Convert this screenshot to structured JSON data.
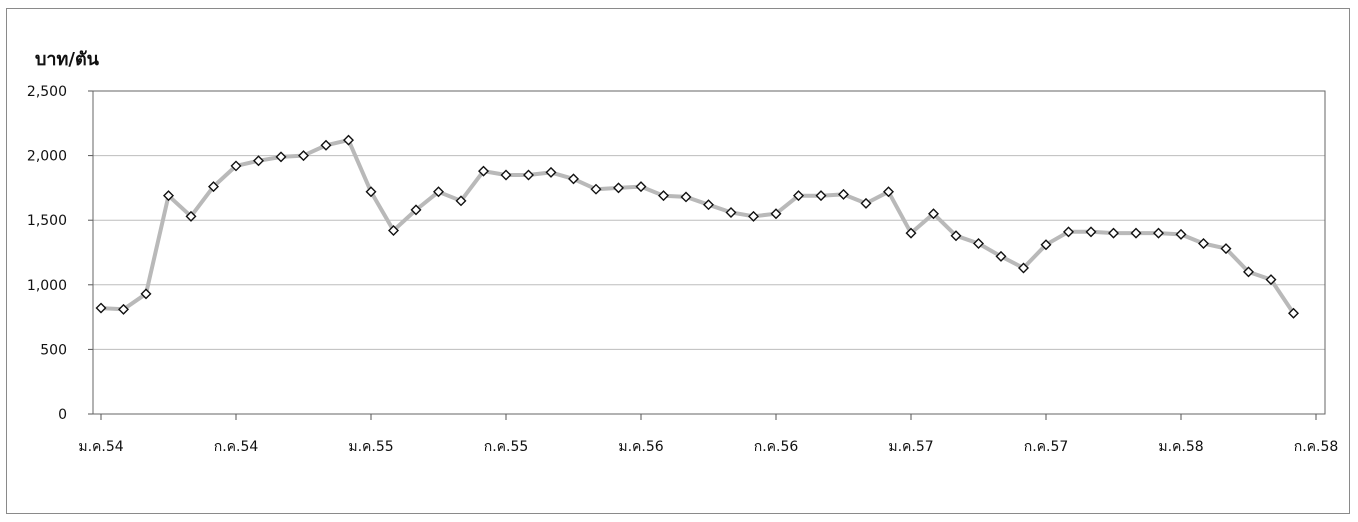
{
  "chart_data": {
    "type": "line",
    "title": "",
    "xlabel": "",
    "ylabel": "บาท/ตัน",
    "ylim": [
      0,
      2500
    ],
    "y_ticks": [
      "0",
      "500",
      "1,000",
      "1,500",
      "2,000",
      "2,500"
    ],
    "y_tick_values": [
      0,
      500,
      1000,
      1500,
      2000,
      2500
    ],
    "x_tick_labels": [
      "ม.ค.54",
      "ก.ค.54",
      "ม.ค.55",
      "ก.ค.55",
      "ม.ค.56",
      "ก.ค.56",
      "ม.ค.57",
      "ก.ค.57",
      "ม.ค.58",
      "ก.ค.58"
    ],
    "x_tick_months": [
      0,
      6,
      12,
      18,
      24,
      30,
      36,
      42,
      48,
      54
    ],
    "grid": true,
    "legend": "none",
    "series": [
      {
        "line_color": "#b9b9b9",
        "marker": "diamond",
        "months": [
          0,
          1,
          2,
          3,
          4,
          5,
          6,
          7,
          8,
          9,
          10,
          11,
          12,
          13,
          14,
          15,
          16,
          17,
          18,
          19,
          20,
          21,
          22,
          23,
          24,
          25,
          26,
          27,
          28,
          29,
          30,
          31,
          32,
          33,
          34,
          35,
          36,
          37,
          38,
          39,
          40,
          41,
          42,
          43,
          44,
          45,
          46,
          47,
          48,
          49,
          50,
          51,
          52,
          53
        ],
        "values": [
          820,
          810,
          930,
          1690,
          1530,
          1760,
          1920,
          1960,
          1990,
          2000,
          2080,
          2120,
          1720,
          1420,
          1580,
          1720,
          1650,
          1880,
          1850,
          1850,
          1870,
          1820,
          1740,
          1750,
          1760,
          1690,
          1680,
          1620,
          1560,
          1530,
          1550,
          1690,
          1690,
          1700,
          1630,
          1720,
          1400,
          1550,
          1380,
          1320,
          1220,
          1130,
          1310,
          1410,
          1410,
          1400,
          1400,
          1400,
          1390,
          1320,
          1280,
          1100,
          1040,
          780
        ]
      }
    ]
  }
}
